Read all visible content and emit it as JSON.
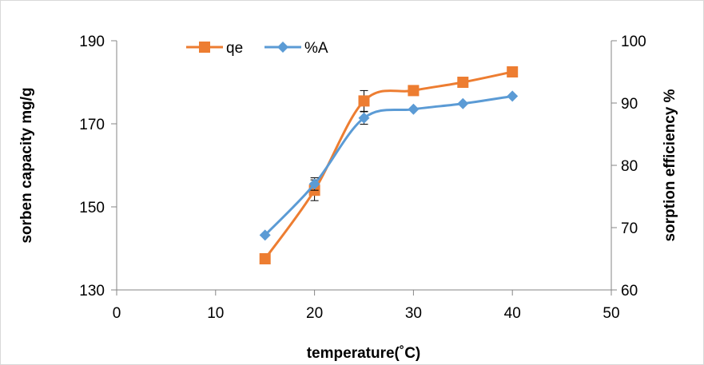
{
  "chart_data": {
    "type": "line",
    "xlabel": "temperature(˚C)",
    "ylabel": "sorben capacity mg/g",
    "y2label": "sorption efficiency %",
    "xlim": [
      0,
      50
    ],
    "ylim": [
      130,
      190
    ],
    "y2lim": [
      60,
      100
    ],
    "x_ticks": [
      "0",
      "10",
      "20",
      "30",
      "40",
      "50"
    ],
    "y_ticks": [
      "130",
      "150",
      "170",
      "190"
    ],
    "y2_ticks": [
      "60",
      "70",
      "80",
      "90",
      "100"
    ],
    "grid": false,
    "legend_position": "top-center",
    "series": [
      {
        "name": "qe",
        "axis": "left",
        "color": "#ed7d31",
        "marker": "square",
        "x": [
          15,
          20,
          25,
          30,
          35,
          40
        ],
        "y": [
          137.5,
          154,
          175.5,
          178,
          180,
          182.5
        ],
        "error": [
          0,
          2.5,
          2.5,
          0,
          0,
          0
        ]
      },
      {
        "name": "%A",
        "axis": "right",
        "color": "#5b9bd5",
        "marker": "diamond",
        "x": [
          15,
          20,
          25,
          30,
          35,
          40
        ],
        "y": [
          68.8,
          77.0,
          87.6,
          89.0,
          89.9,
          91.1
        ],
        "error": [
          0,
          1.0,
          1.0,
          0,
          0,
          0
        ]
      }
    ]
  }
}
